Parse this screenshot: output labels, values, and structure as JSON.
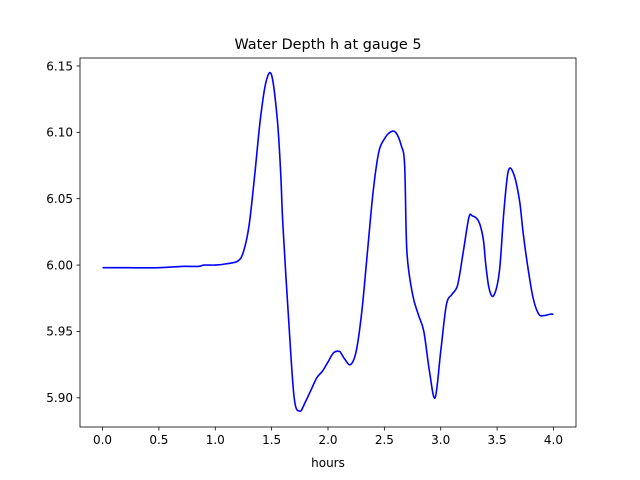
{
  "chart_data": {
    "type": "line",
    "title": "Water Depth h at gauge 5",
    "xlabel": "hours",
    "ylabel": "",
    "xlim": [
      -0.2,
      4.2
    ],
    "ylim": [
      5.878,
      6.156
    ],
    "x_ticks": [
      0.0,
      0.5,
      1.0,
      1.5,
      2.0,
      2.5,
      3.0,
      3.5,
      4.0
    ],
    "x_tick_labels": [
      "0.0",
      "0.5",
      "1.0",
      "1.5",
      "2.0",
      "2.5",
      "3.0",
      "3.5",
      "4.0"
    ],
    "y_ticks": [
      5.9,
      5.95,
      6.0,
      6.05,
      6.1,
      6.15
    ],
    "y_tick_labels": [
      "5.90",
      "5.95",
      "6.00",
      "6.05",
      "6.10",
      "6.15"
    ],
    "grid": false,
    "legend": "none",
    "series": [
      {
        "color": "#0000ff",
        "x": [
          0.0,
          0.2,
          0.5,
          0.7,
          0.85,
          0.9,
          1.0,
          1.1,
          1.2,
          1.25,
          1.3,
          1.35,
          1.4,
          1.45,
          1.5,
          1.55,
          1.58,
          1.6,
          1.65,
          1.7,
          1.75,
          1.8,
          1.85,
          1.9,
          1.95,
          2.0,
          2.05,
          2.1,
          2.12,
          2.15,
          2.2,
          2.25,
          2.3,
          2.35,
          2.4,
          2.45,
          2.5,
          2.55,
          2.6,
          2.65,
          2.68,
          2.7,
          2.75,
          2.8,
          2.85,
          2.9,
          2.95,
          3.0,
          3.05,
          3.1,
          3.15,
          3.2,
          3.25,
          3.28,
          3.32,
          3.35,
          3.38,
          3.4,
          3.43,
          3.47,
          3.52,
          3.56,
          3.6,
          3.65,
          3.7,
          3.73,
          3.77,
          3.82,
          3.87,
          3.92,
          3.97,
          4.0
        ],
        "y": [
          5.998,
          5.998,
          5.998,
          5.999,
          5.999,
          6.0,
          6.0,
          6.001,
          6.003,
          6.01,
          6.03,
          6.068,
          6.11,
          6.138,
          6.143,
          6.11,
          6.07,
          6.03,
          5.96,
          5.9,
          5.89,
          5.897,
          5.906,
          5.915,
          5.92,
          5.927,
          5.934,
          5.935,
          5.933,
          5.929,
          5.925,
          5.935,
          5.965,
          6.01,
          6.055,
          6.085,
          6.095,
          6.1,
          6.1,
          6.09,
          6.075,
          6.01,
          5.978,
          5.963,
          5.95,
          5.92,
          5.9,
          5.935,
          5.97,
          5.978,
          5.985,
          6.01,
          6.036,
          6.037,
          6.035,
          6.03,
          6.018,
          6.0,
          5.982,
          5.977,
          5.995,
          6.04,
          6.071,
          6.068,
          6.048,
          6.025,
          6.0,
          5.975,
          5.963,
          5.962,
          5.963,
          5.963
        ]
      }
    ]
  }
}
